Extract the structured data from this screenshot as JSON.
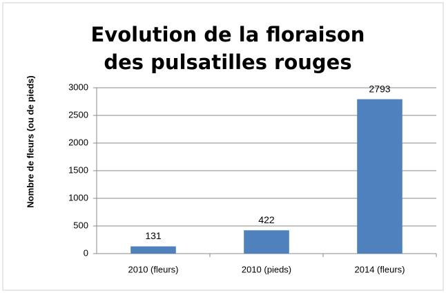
{
  "chart_data": {
    "type": "bar",
    "title": "Evolution de la floraison des pulsatilles rouges",
    "y_label": "Nombre de fleurs (ou de pieds)",
    "categories": [
      "2010 (fleurs)",
      "2010 (pieds)",
      "2014 (fleurs)"
    ],
    "values": [
      131,
      422,
      2793
    ],
    "color": "#4f81bd",
    "ylim": [
      0,
      3000
    ],
    "yticks": [
      0,
      500,
      1000,
      1500,
      2000,
      2500,
      3000
    ],
    "grid": true
  }
}
